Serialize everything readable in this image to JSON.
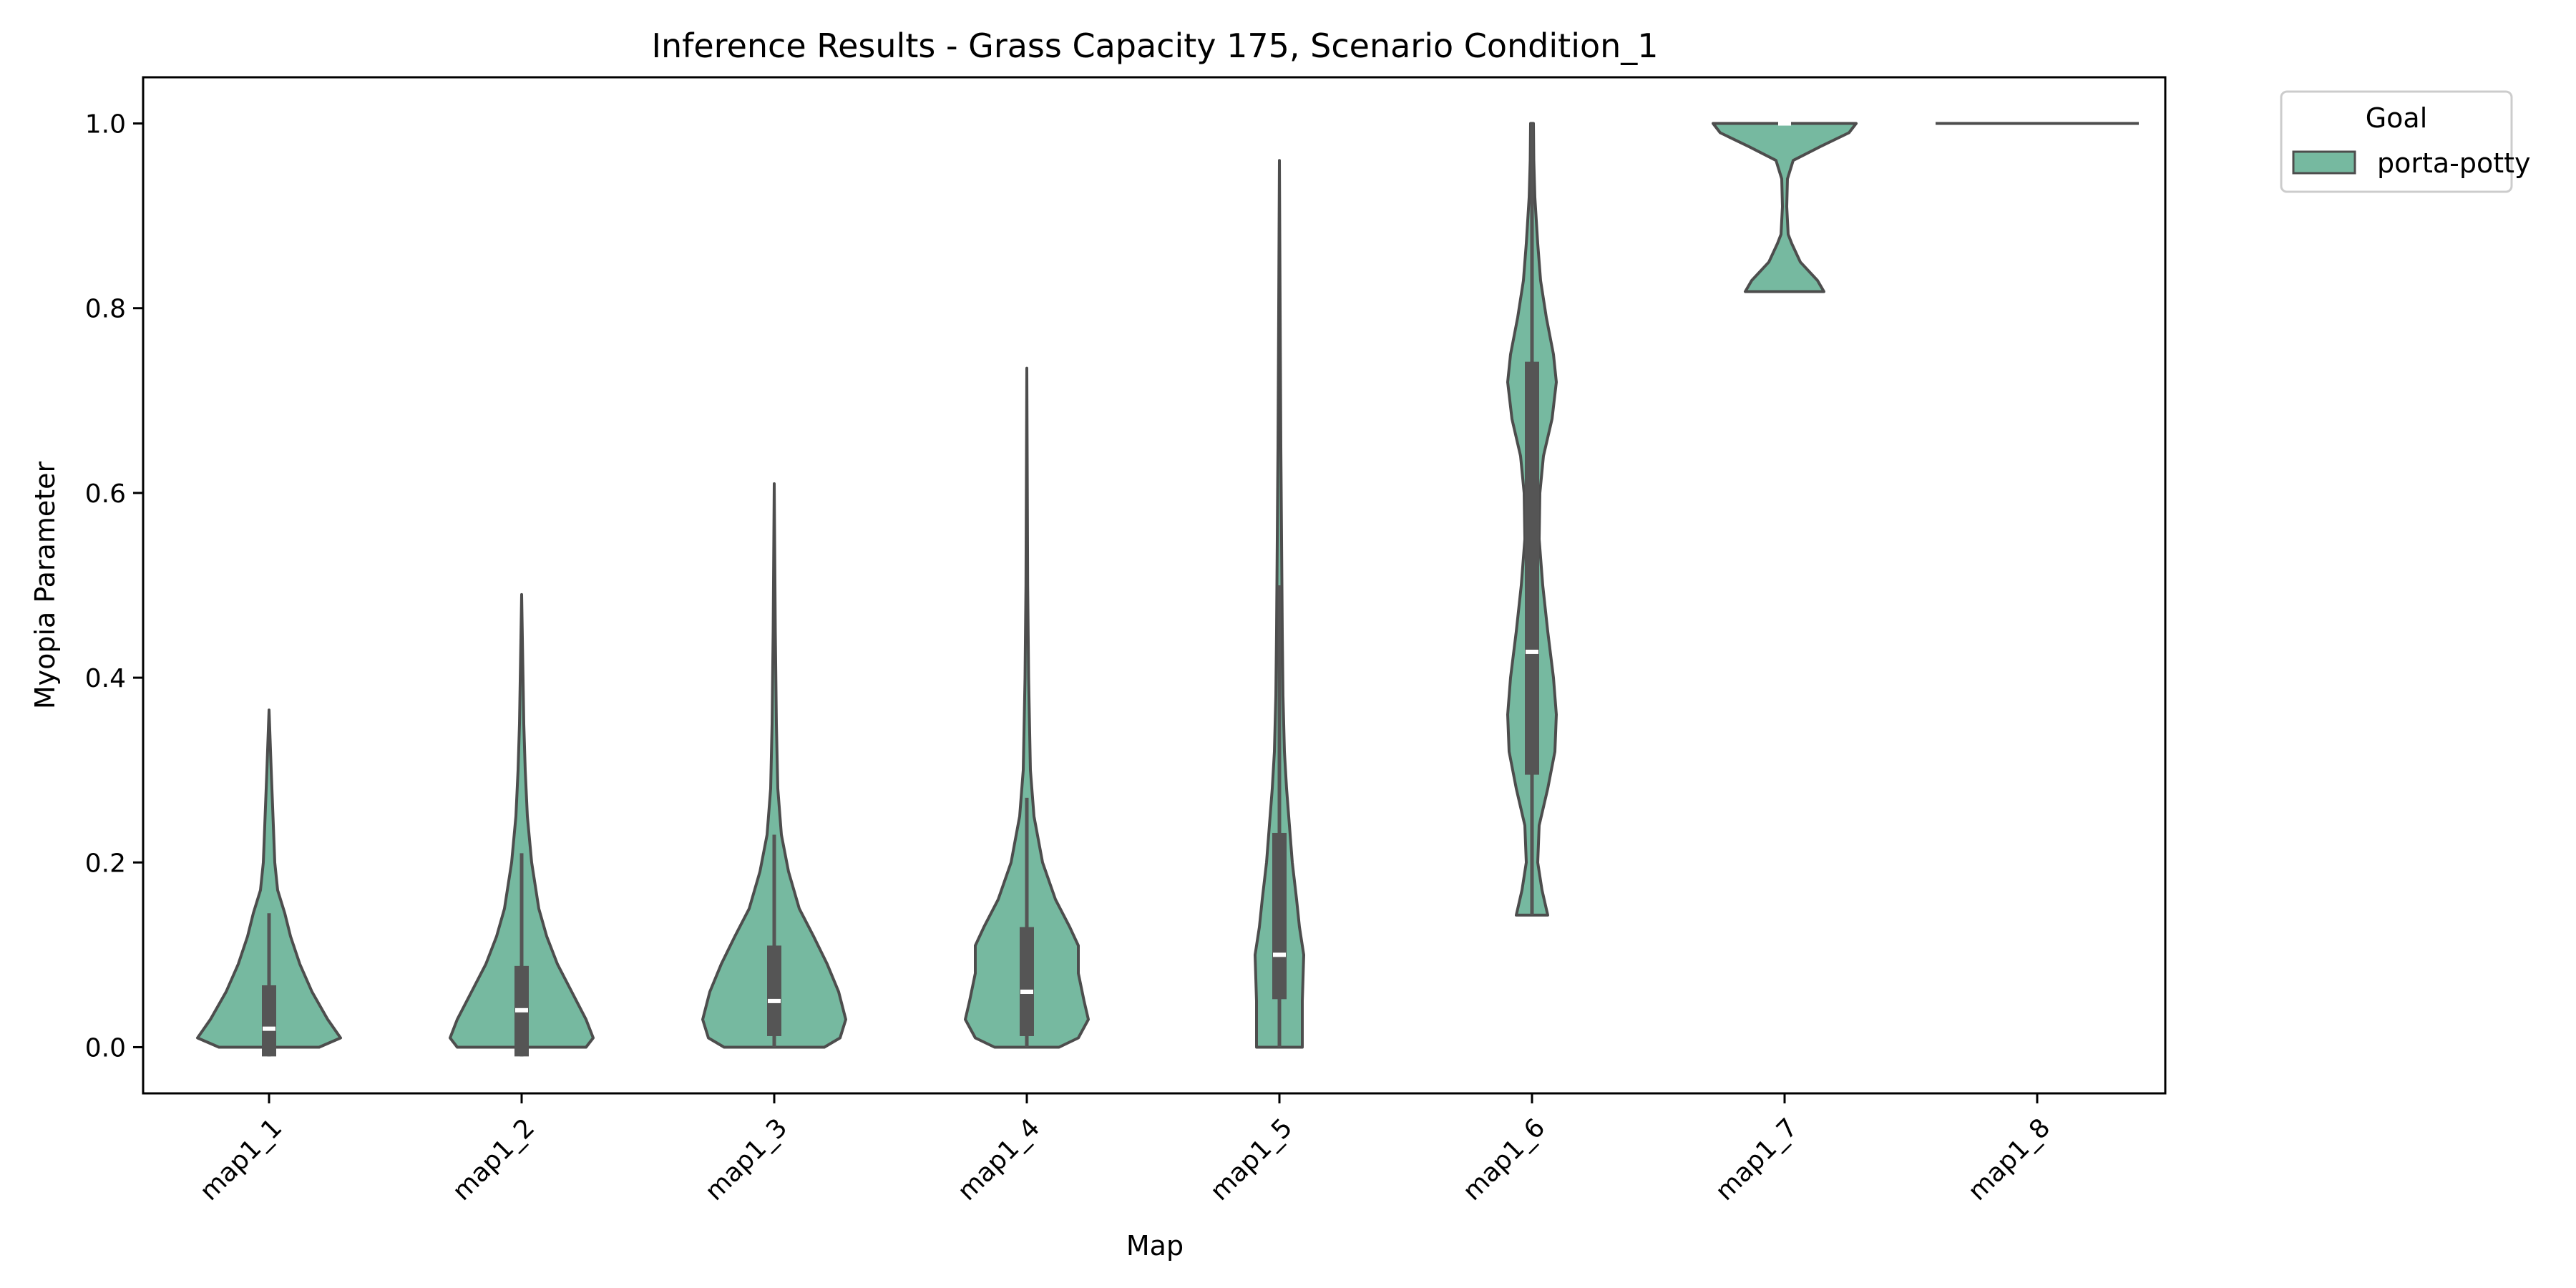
{
  "chart_data": {
    "type": "violin",
    "title": "Inference Results - Grass Capacity 175, Scenario Condition_1",
    "xlabel": "Map",
    "ylabel": "Myopia Parameter",
    "categories": [
      "map1_1",
      "map1_2",
      "map1_3",
      "map1_4",
      "map1_5",
      "map1_6",
      "map1_7",
      "map1_8"
    ],
    "ylim": [
      -0.05,
      1.05
    ],
    "yticks": [
      0.0,
      0.2,
      0.4,
      0.6,
      0.8,
      1.0
    ],
    "ytick_labels": [
      "0.0",
      "0.2",
      "0.4",
      "0.6",
      "0.8",
      "1.0"
    ],
    "grid": false,
    "legend": {
      "title": "Goal",
      "placement": "outside-top-right",
      "entries": [
        "porta-potty"
      ]
    },
    "series": [
      {
        "name": "porta-potty",
        "color": "#76b9a0",
        "edge_color": "#4d4d4d",
        "box_color": "#555555",
        "median_color": "#ffffff",
        "violins": [
          {
            "category": "map1_1",
            "min": 0.0,
            "max": 0.365,
            "whisker_low": -0.01,
            "whisker_high": 0.145,
            "q1": -0.01,
            "q3": 0.067,
            "median": 0.02,
            "profile": [
              [
                0.0,
                0.7
              ],
              [
                0.01,
                1.0
              ],
              [
                0.03,
                0.82
              ],
              [
                0.06,
                0.6
              ],
              [
                0.09,
                0.43
              ],
              [
                0.12,
                0.3
              ],
              [
                0.145,
                0.22
              ],
              [
                0.17,
                0.12
              ],
              [
                0.2,
                0.08
              ],
              [
                0.25,
                0.055
              ],
              [
                0.3,
                0.03
              ],
              [
                0.365,
                0.0
              ]
            ]
          },
          {
            "category": "map1_2",
            "min": 0.0,
            "max": 0.49,
            "whisker_low": -0.01,
            "whisker_high": 0.21,
            "q1": -0.01,
            "q3": 0.088,
            "median": 0.04,
            "profile": [
              [
                0.0,
                0.9
              ],
              [
                0.01,
                1.0
              ],
              [
                0.03,
                0.9
              ],
              [
                0.06,
                0.7
              ],
              [
                0.09,
                0.5
              ],
              [
                0.12,
                0.35
              ],
              [
                0.15,
                0.24
              ],
              [
                0.2,
                0.14
              ],
              [
                0.25,
                0.08
              ],
              [
                0.3,
                0.05
              ],
              [
                0.35,
                0.03
              ],
              [
                0.42,
                0.015
              ],
              [
                0.49,
                0.0
              ]
            ]
          },
          {
            "category": "map1_3",
            "min": 0.0,
            "max": 0.61,
            "whisker_low": 0.0,
            "whisker_high": 0.23,
            "q1": 0.012,
            "q3": 0.11,
            "median": 0.05,
            "profile": [
              [
                0.0,
                0.7
              ],
              [
                0.01,
                0.92
              ],
              [
                0.03,
                1.0
              ],
              [
                0.06,
                0.9
              ],
              [
                0.09,
                0.74
              ],
              [
                0.12,
                0.55
              ],
              [
                0.15,
                0.35
              ],
              [
                0.19,
                0.2
              ],
              [
                0.23,
                0.1
              ],
              [
                0.28,
                0.05
              ],
              [
                0.35,
                0.03
              ],
              [
                0.45,
                0.015
              ],
              [
                0.61,
                0.0
              ]
            ]
          },
          {
            "category": "map1_4",
            "min": 0.0,
            "max": 0.735,
            "whisker_low": 0.0,
            "whisker_high": 0.27,
            "q1": 0.012,
            "q3": 0.13,
            "median": 0.06,
            "profile": [
              [
                0.0,
                0.45
              ],
              [
                0.01,
                0.72
              ],
              [
                0.03,
                0.86
              ],
              [
                0.05,
                0.8
              ],
              [
                0.08,
                0.72
              ],
              [
                0.11,
                0.72
              ],
              [
                0.13,
                0.6
              ],
              [
                0.16,
                0.4
              ],
              [
                0.2,
                0.22
              ],
              [
                0.25,
                0.1
              ],
              [
                0.3,
                0.05
              ],
              [
                0.4,
                0.025
              ],
              [
                0.5,
                0.012
              ],
              [
                0.735,
                0.0
              ]
            ]
          },
          {
            "category": "map1_5",
            "min": 0.0,
            "max": 0.96,
            "whisker_low": 0.0,
            "whisker_high": 0.5,
            "q1": 0.052,
            "q3": 0.232,
            "median": 0.1,
            "profile": [
              [
                0.0,
                0.32
              ],
              [
                0.05,
                0.32
              ],
              [
                0.1,
                0.34
              ],
              [
                0.13,
                0.28
              ],
              [
                0.16,
                0.24
              ],
              [
                0.2,
                0.18
              ],
              [
                0.24,
                0.14
              ],
              [
                0.28,
                0.1
              ],
              [
                0.32,
                0.07
              ],
              [
                0.38,
                0.05
              ],
              [
                0.45,
                0.04
              ],
              [
                0.55,
                0.03
              ],
              [
                0.65,
                0.02
              ],
              [
                0.8,
                0.01
              ],
              [
                0.96,
                0.0
              ]
            ]
          },
          {
            "category": "map1_6",
            "min": 0.143,
            "max": 1.0,
            "whisker_low": 0.143,
            "whisker_high": 1.0,
            "q1": 0.295,
            "q3": 0.742,
            "median": 0.428,
            "profile": [
              [
                0.143,
                0.22
              ],
              [
                0.17,
                0.14
              ],
              [
                0.2,
                0.08
              ],
              [
                0.24,
                0.1
              ],
              [
                0.28,
                0.22
              ],
              [
                0.32,
                0.32
              ],
              [
                0.36,
                0.34
              ],
              [
                0.4,
                0.3
              ],
              [
                0.45,
                0.22
              ],
              [
                0.5,
                0.15
              ],
              [
                0.55,
                0.1
              ],
              [
                0.6,
                0.11
              ],
              [
                0.64,
                0.16
              ],
              [
                0.68,
                0.28
              ],
              [
                0.72,
                0.34
              ],
              [
                0.75,
                0.3
              ],
              [
                0.79,
                0.2
              ],
              [
                0.83,
                0.12
              ],
              [
                0.87,
                0.08
              ],
              [
                0.92,
                0.04
              ],
              [
                0.96,
                0.025
              ],
              [
                1.0,
                0.02
              ]
            ]
          },
          {
            "category": "map1_7",
            "min": 0.818,
            "max": 1.0,
            "whisker_low": 1.0,
            "whisker_high": 1.0,
            "q1": 1.0,
            "q3": 1.0,
            "median": 1.0,
            "profile": [
              [
                0.818,
                0.55
              ],
              [
                0.83,
                0.46
              ],
              [
                0.85,
                0.22
              ],
              [
                0.87,
                0.1
              ],
              [
                0.88,
                0.05
              ],
              [
                0.91,
                0.03
              ],
              [
                0.94,
                0.04
              ],
              [
                0.96,
                0.12
              ],
              [
                0.975,
                0.5
              ],
              [
                0.99,
                0.9
              ],
              [
                1.0,
                1.0
              ]
            ]
          },
          {
            "category": "map1_8",
            "min": 1.0,
            "max": 1.0,
            "whisker_low": 1.0,
            "whisker_high": 1.0,
            "q1": 1.0,
            "q3": 1.0,
            "median": 1.0,
            "profile": [
              [
                1.0,
                1.0
              ]
            ]
          }
        ]
      }
    ]
  }
}
